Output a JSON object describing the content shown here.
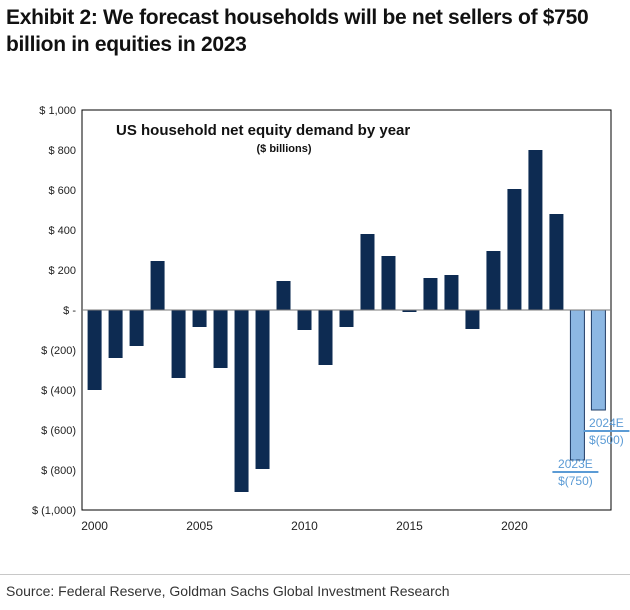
{
  "header": {
    "title": "Exhibit 2: We forecast households will be net sellers of $750 billion in equities in 2023"
  },
  "footer": {
    "source": "Source: Federal Reserve, Goldman Sachs Global Investment Research"
  },
  "colors": {
    "actual": "#0d2b52",
    "forecast": "#8db8e3",
    "annotation": "#5b9bd5"
  },
  "chart_data": {
    "type": "bar",
    "title": "US household net equity demand by year",
    "subtitle": "($ billions)",
    "xlabel": "",
    "ylabel": "",
    "ylim": [
      -1000,
      1000
    ],
    "yticks": [
      1000,
      800,
      600,
      400,
      200,
      0,
      -200,
      -400,
      -600,
      -800,
      -1000
    ],
    "ytick_labels": [
      "$ 1,000",
      "$ 800",
      "$ 600",
      "$ 400",
      "$ 200",
      "$ -",
      "$ (200)",
      "$ (400)",
      "$ (600)",
      "$ (800)",
      "$ (1,000)"
    ],
    "xticks": [
      2000,
      2005,
      2010,
      2015,
      2020
    ],
    "xtick_labels": [
      "2000",
      "2005",
      "2010",
      "2015",
      "2020"
    ],
    "x": [
      2000,
      2001,
      2002,
      2003,
      2004,
      2005,
      2006,
      2007,
      2008,
      2009,
      2010,
      2011,
      2012,
      2013,
      2014,
      2015,
      2016,
      2017,
      2018,
      2019,
      2020,
      2021,
      2022,
      2023,
      2024
    ],
    "values": [
      -400,
      -240,
      -180,
      245,
      -340,
      -85,
      -290,
      -910,
      -795,
      145,
      -100,
      -275,
      -85,
      380,
      270,
      -10,
      160,
      175,
      -95,
      295,
      605,
      800,
      480,
      -750,
      -500
    ],
    "forecast": [
      false,
      false,
      false,
      false,
      false,
      false,
      false,
      false,
      false,
      false,
      false,
      false,
      false,
      false,
      false,
      false,
      false,
      false,
      false,
      false,
      false,
      false,
      false,
      true,
      true
    ],
    "annotations": [
      {
        "year": 2023,
        "label": "2023E",
        "value_label": "$(750)"
      },
      {
        "year": 2024,
        "label": "2024E",
        "value_label": "$(500)"
      }
    ]
  }
}
